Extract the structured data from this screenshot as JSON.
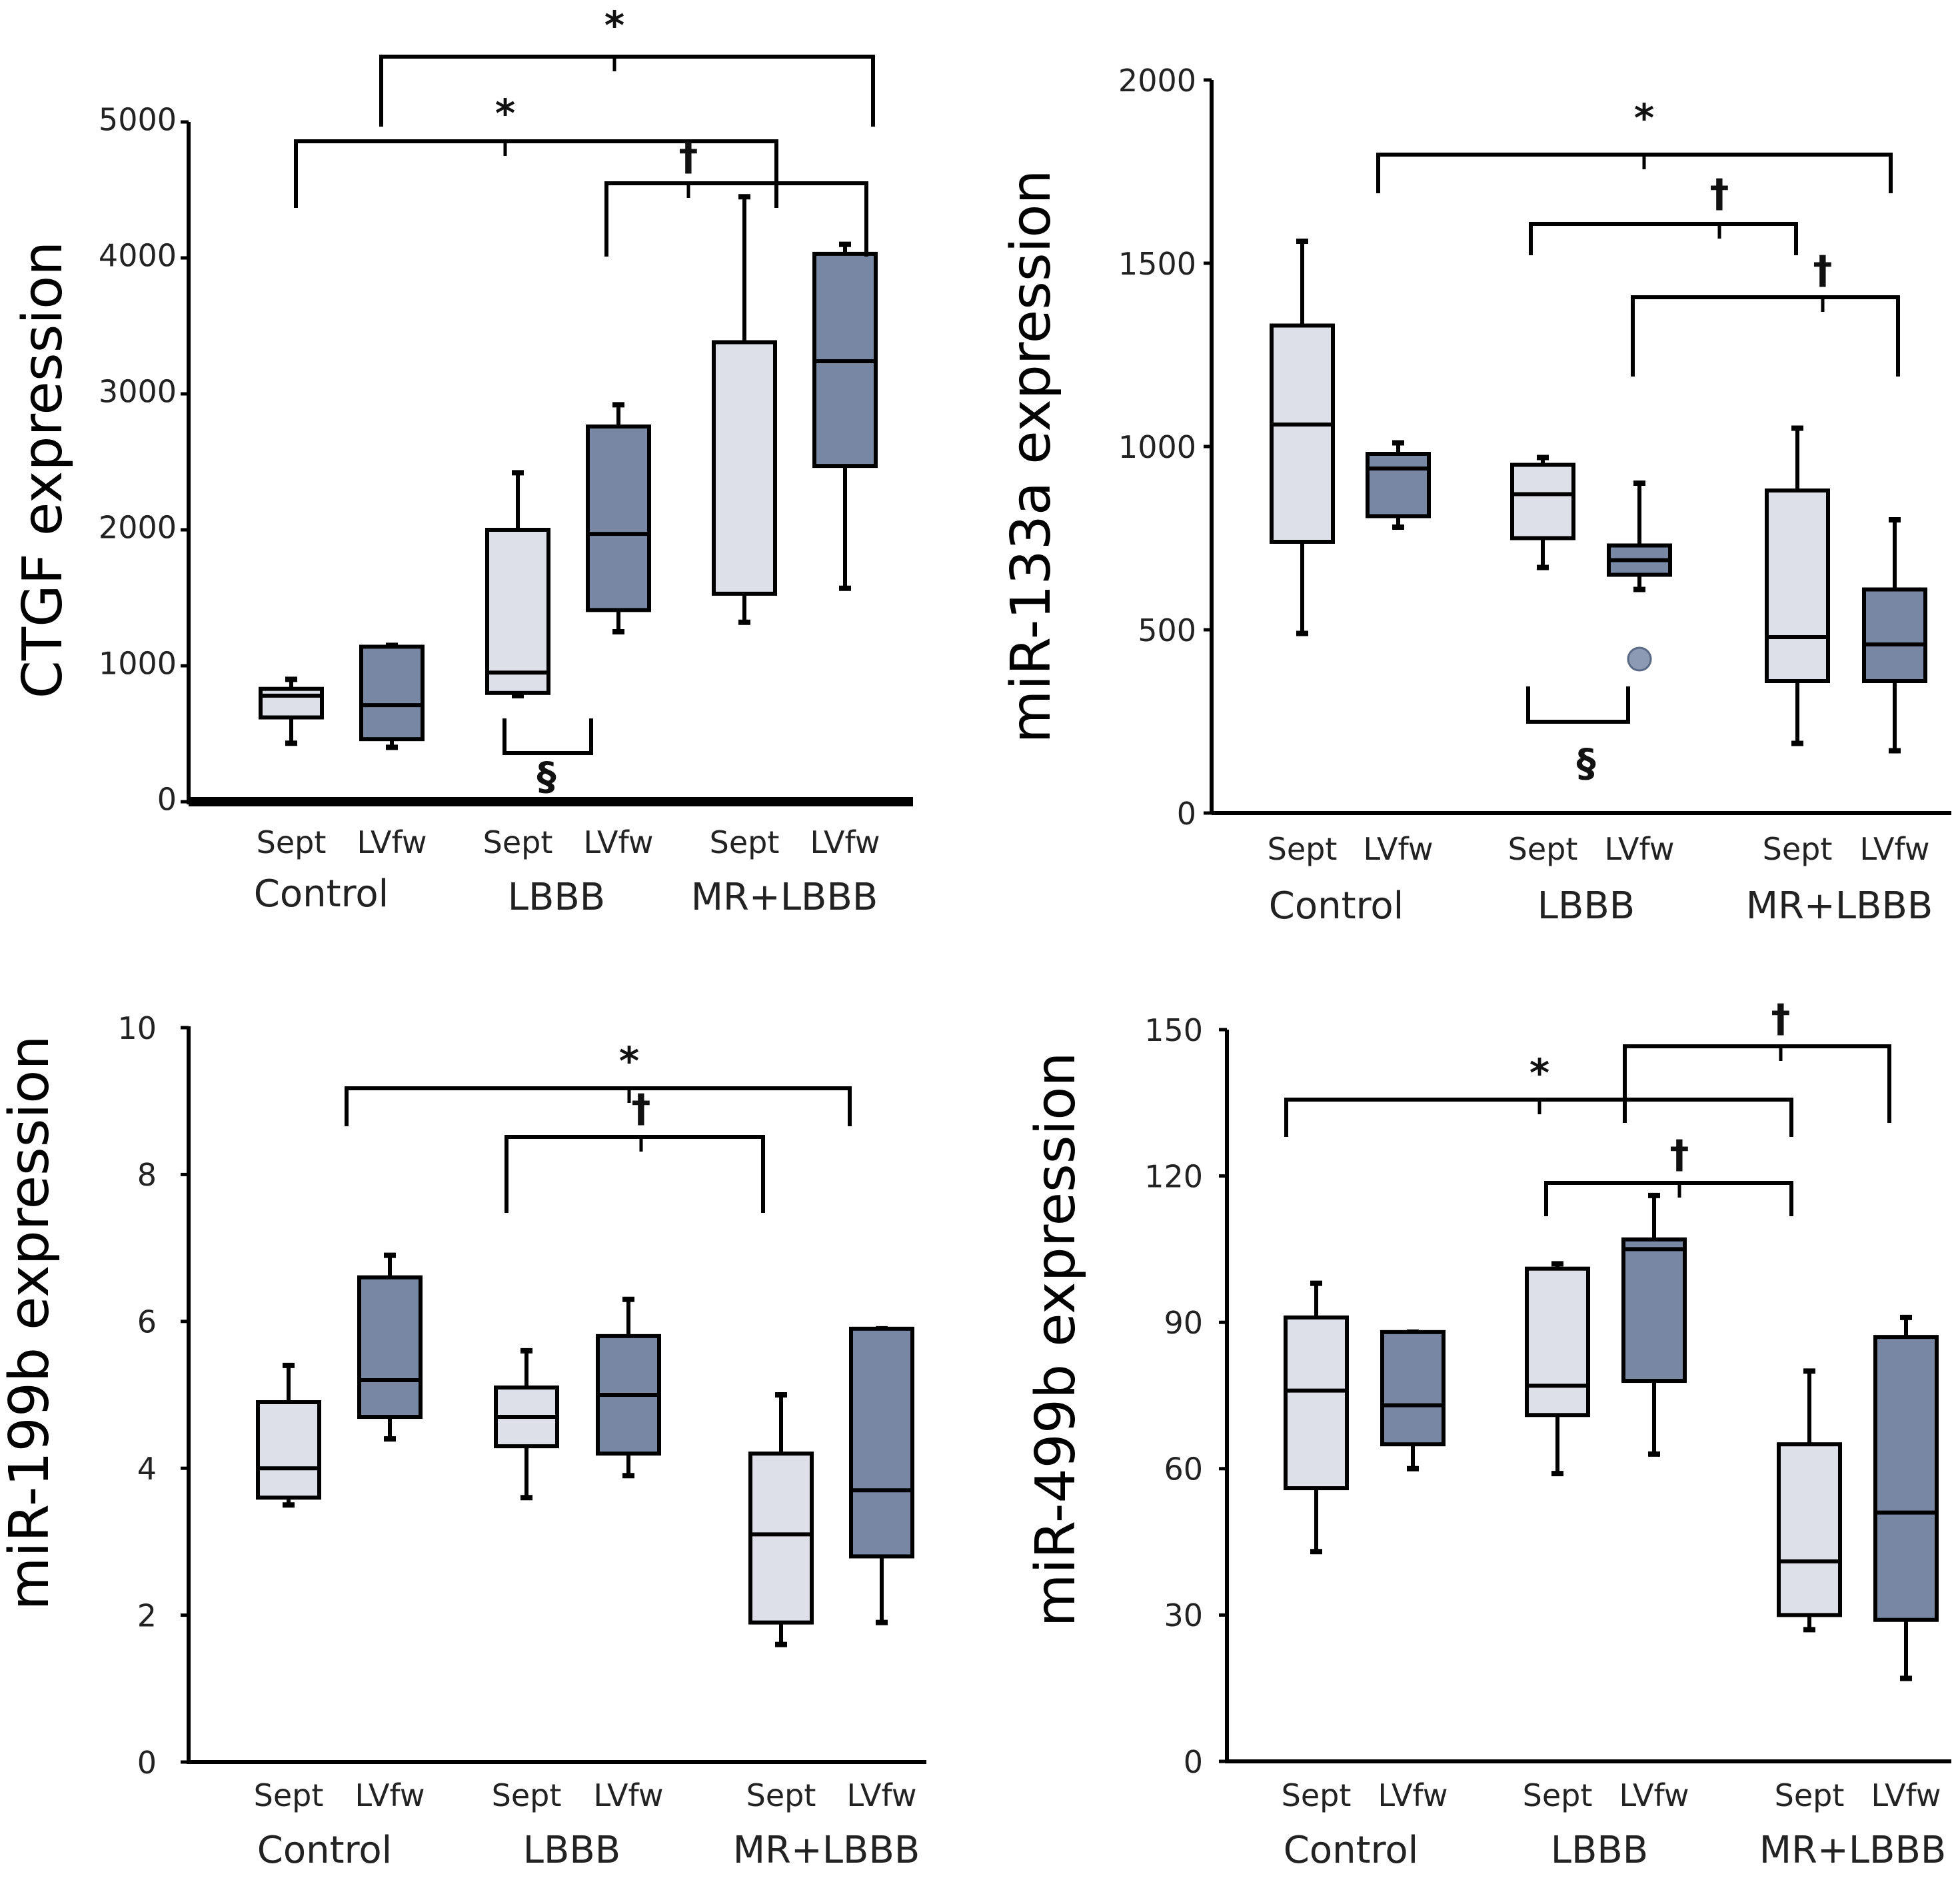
{
  "figure": {
    "category_labels": [
      "Sept",
      "LVfw"
    ],
    "group_labels": [
      "Control",
      "LBBB",
      "MR+LBBB"
    ],
    "colors": {
      "sept": "#dde0e8",
      "lvfw": "#7888a4",
      "stroke": "#000000",
      "outlier": "#8c9ab4"
    }
  },
  "chart_data": [
    {
      "type": "box",
      "title": "",
      "ylabel": "CTGF expression",
      "ylim": [
        0,
        5000
      ],
      "yticks": [
        0,
        1000,
        2000,
        3000,
        4000,
        5000
      ],
      "groups": [
        "Control",
        "LBBB",
        "MR+LBBB"
      ],
      "categories": [
        "Sept",
        "LVfw"
      ],
      "boxes": [
        {
          "group": "Control",
          "category": "Sept",
          "min": 430,
          "q1": 620,
          "median": 780,
          "q3": 830,
          "max": 900
        },
        {
          "group": "Control",
          "category": "LVfw",
          "min": 400,
          "q1": 460,
          "median": 710,
          "q3": 1140,
          "max": 1150
        },
        {
          "group": "LBBB",
          "category": "Sept",
          "min": 780,
          "q1": 800,
          "median": 950,
          "q3": 2000,
          "max": 2420
        },
        {
          "group": "LBBB",
          "category": "LVfw",
          "min": 1250,
          "q1": 1410,
          "median": 1970,
          "q3": 2760,
          "max": 2920
        },
        {
          "group": "MR+LBBB",
          "category": "Sept",
          "min": 1320,
          "q1": 1530,
          "median": null,
          "q3": 3380,
          "max": 4450
        },
        {
          "group": "MR+LBBB",
          "category": "LVfw",
          "min": 1570,
          "q1": 2470,
          "median": 3240,
          "q3": 4030,
          "max": 4100
        }
      ],
      "outliers": [],
      "annotations": [
        {
          "symbol": "*",
          "from": "Control",
          "to": "MR+LBBB Sept"
        },
        {
          "symbol": "*",
          "from": "Control LVfw",
          "to": "MR+LBBB LVfw"
        },
        {
          "symbol": "†",
          "from": "LBBB LVfw",
          "to": "MR+LBBB LVfw"
        },
        {
          "symbol": "§",
          "from": "LBBB Sept",
          "to": "LBBB LVfw"
        }
      ]
    },
    {
      "type": "box",
      "title": "",
      "ylabel": "miR-133a expression",
      "ylim": [
        0,
        2000
      ],
      "yticks": [
        0,
        500,
        1000,
        1500,
        2000
      ],
      "groups": [
        "Control",
        "LBBB",
        "MR+LBBB"
      ],
      "categories": [
        "Sept",
        "LVfw"
      ],
      "boxes": [
        {
          "group": "Control",
          "category": "Sept",
          "min": 490,
          "q1": 740,
          "median": 1060,
          "q3": 1330,
          "max": 1560
        },
        {
          "group": "Control",
          "category": "LVfw",
          "min": 780,
          "q1": 810,
          "median": 940,
          "q3": 980,
          "max": 1010
        },
        {
          "group": "LBBB",
          "category": "Sept",
          "min": 670,
          "q1": 750,
          "median": 870,
          "q3": 950,
          "max": 970
        },
        {
          "group": "LBBB",
          "category": "LVfw",
          "min": 610,
          "q1": 650,
          "median": 690,
          "q3": 730,
          "max": 900
        },
        {
          "group": "MR+LBBB",
          "category": "Sept",
          "min": 190,
          "q1": 360,
          "median": 480,
          "q3": 880,
          "max": 1050
        },
        {
          "group": "MR+LBBB",
          "category": "LVfw",
          "min": 170,
          "q1": 360,
          "median": 460,
          "q3": 610,
          "max": 800
        }
      ],
      "outliers": [
        {
          "group": "LBBB",
          "category": "LVfw",
          "value": 420
        }
      ],
      "annotations": [
        {
          "symbol": "*",
          "from": "Control LVfw",
          "to": "MR+LBBB LVfw"
        },
        {
          "symbol": "†",
          "from": "LBBB Sept",
          "to": "MR+LBBB Sept"
        },
        {
          "symbol": "†",
          "from": "LBBB LVfw",
          "to": "MR+LBBB LVfw"
        },
        {
          "symbol": "§",
          "from": "LBBB Sept",
          "to": "LBBB LVfw"
        }
      ]
    },
    {
      "type": "box",
      "title": "",
      "ylabel": "miR-199b expression",
      "ylim": [
        0,
        10
      ],
      "yticks": [
        0,
        2,
        4,
        6,
        8,
        10
      ],
      "groups": [
        "Control",
        "LBBB",
        "MR+LBBB"
      ],
      "categories": [
        "Sept",
        "LVfw"
      ],
      "boxes": [
        {
          "group": "Control",
          "category": "Sept",
          "min": 3.5,
          "q1": 3.6,
          "median": 4.0,
          "q3": 4.9,
          "max": 5.4
        },
        {
          "group": "Control",
          "category": "LVfw",
          "min": 4.4,
          "q1": 4.7,
          "median": 5.2,
          "q3": 6.6,
          "max": 6.9
        },
        {
          "group": "LBBB",
          "category": "Sept",
          "min": 3.6,
          "q1": 4.3,
          "median": 4.7,
          "q3": 5.1,
          "max": 5.6
        },
        {
          "group": "LBBB",
          "category": "LVfw",
          "min": 3.9,
          "q1": 4.2,
          "median": 5.0,
          "q3": 5.8,
          "max": 6.3
        },
        {
          "group": "MR+LBBB",
          "category": "Sept",
          "min": 1.6,
          "q1": 1.9,
          "median": 3.1,
          "q3": 4.2,
          "max": 5.0
        },
        {
          "group": "MR+LBBB",
          "category": "LVfw",
          "min": 1.9,
          "q1": 2.8,
          "median": 3.7,
          "q3": 5.9,
          "max": 5.9
        }
      ],
      "outliers": [],
      "annotations": [
        {
          "symbol": "*",
          "from": "Control LVfw",
          "to": "MR+LBBB LVfw"
        },
        {
          "symbol": "†",
          "from": "LBBB Sept",
          "to": "MR+LBBB Sept"
        }
      ]
    },
    {
      "type": "box",
      "title": "",
      "ylabel": "miR-499b expression",
      "ylim": [
        0,
        150
      ],
      "yticks": [
        0,
        30,
        60,
        90,
        120,
        150
      ],
      "groups": [
        "Control",
        "LBBB",
        "MR+LBBB"
      ],
      "categories": [
        "Sept",
        "LVfw"
      ],
      "boxes": [
        {
          "group": "Control",
          "category": "Sept",
          "min": 43,
          "q1": 56,
          "median": 76,
          "q3": 91,
          "max": 98
        },
        {
          "group": "Control",
          "category": "LVfw",
          "min": 60,
          "q1": 65,
          "median": 73,
          "q3": 88,
          "max": 88
        },
        {
          "group": "LBBB",
          "category": "Sept",
          "min": 59,
          "q1": 71,
          "median": 77,
          "q3": 101,
          "max": 102
        },
        {
          "group": "LBBB",
          "category": "LVfw",
          "min": 63,
          "q1": 78,
          "median": 105,
          "q3": 107,
          "max": 116
        },
        {
          "group": "MR+LBBB",
          "category": "Sept",
          "min": 27,
          "q1": 30,
          "median": 41,
          "q3": 65,
          "max": 80
        },
        {
          "group": "MR+LBBB",
          "category": "LVfw",
          "min": 17,
          "q1": 29,
          "median": 51,
          "q3": 87,
          "max": 91
        }
      ],
      "outliers": [],
      "annotations": [
        {
          "symbol": "*",
          "from": "Control Sept",
          "to": "MR+LBBB Sept"
        },
        {
          "symbol": "†",
          "from": "LBBB Sept",
          "to": "MR+LBBB Sept"
        },
        {
          "symbol": "†",
          "from": "LBBB LVfw",
          "to": "MR+LBBB LVfw"
        }
      ]
    }
  ]
}
